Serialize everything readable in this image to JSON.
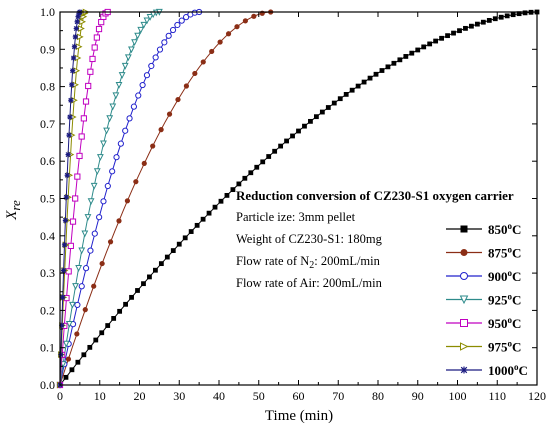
{
  "chart_data": {
    "type": "line",
    "xlabel": "Time (min)",
    "ylabel": "X",
    "ylabel_sub": "re",
    "xlim": [
      0,
      120
    ],
    "ylim": [
      0,
      1.0
    ],
    "x_ticks": [
      0,
      10,
      20,
      30,
      40,
      50,
      60,
      70,
      80,
      90,
      100,
      110,
      120
    ],
    "y_ticks": [
      0.0,
      0.1,
      0.2,
      0.3,
      0.4,
      0.5,
      0.6,
      0.7,
      0.8,
      0.9,
      1.0
    ],
    "grid": false,
    "legend_position": "right",
    "annotation": {
      "title": "Reduction conversion of CZ230-S1 oxygen carrier",
      "line1": "Particle ize: 3mm pellet",
      "line2": "Weight of CZ230-S1: 180mg",
      "line3_pre": "Flow rate of N",
      "line3_sub": "2",
      "line3_post": ": 200mL/min",
      "line4": "Flow rate of Air: 200mL/min"
    },
    "series": [
      {
        "name": "850",
        "unit": "C",
        "color": "#000000",
        "marker": "square",
        "t_end": 120,
        "shape": 0.72
      },
      {
        "name": "875",
        "unit": "C",
        "color": "#8B2E16",
        "marker": "circle-filled",
        "t_end": 53,
        "shape": 0.85
      },
      {
        "name": "900",
        "unit": "C",
        "color": "#2222CC",
        "marker": "circle-open",
        "t_end": 35,
        "shape": 0.9
      },
      {
        "name": "925",
        "unit": "C",
        "color": "#2E8B8B",
        "marker": "tri-down",
        "t_end": 25,
        "shape": 0.9
      },
      {
        "name": "950",
        "unit": "C",
        "color": "#C000C0",
        "marker": "square-open",
        "t_end": 12,
        "shape": 0.9
      },
      {
        "name": "975",
        "unit": "C",
        "color": "#8C8C00",
        "marker": "tri-right",
        "t_end": 6.5,
        "shape": 0.92
      },
      {
        "name": "1000",
        "unit": "C",
        "color": "#1A1A80",
        "marker": "star",
        "t_end": 5,
        "shape": 0.92
      }
    ]
  }
}
